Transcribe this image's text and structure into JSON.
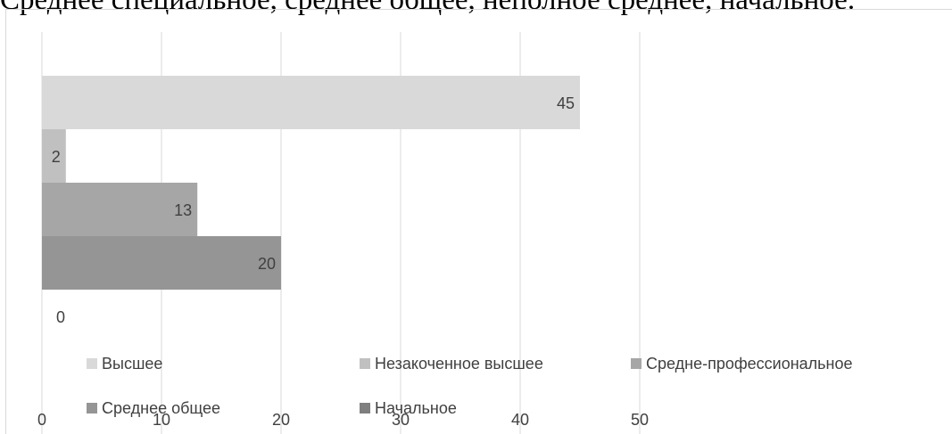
{
  "top_text": "Среднее специальное, среднее общее, неполное среднее, начальное.",
  "chart_data": {
    "type": "bar",
    "orientation": "horizontal",
    "title": "",
    "xlabel": "",
    "ylabel": "",
    "xlim": [
      0,
      50
    ],
    "x_ticks": [
      "0",
      "10",
      "20",
      "30",
      "40",
      "50"
    ],
    "grid": true,
    "legend_position": "bottom",
    "series": [
      {
        "name": "Высшее",
        "value": 45,
        "label": "45",
        "color": "#d9d9d9"
      },
      {
        "name": "Незакоченное высшее",
        "value": 2,
        "label": "2",
        "color": "#c0c0c0"
      },
      {
        "name": "Средне-профессиональное",
        "value": 13,
        "label": "13",
        "color": "#a6a6a6"
      },
      {
        "name": "Среднее общее",
        "value": 20,
        "label": "20",
        "color": "#959595"
      },
      {
        "name": "Начальное",
        "value": 0,
        "label": "0",
        "color": "#7f7f7f"
      }
    ],
    "colors": {
      "gridline": "#d9d9d9",
      "label_text": "#404040"
    }
  }
}
